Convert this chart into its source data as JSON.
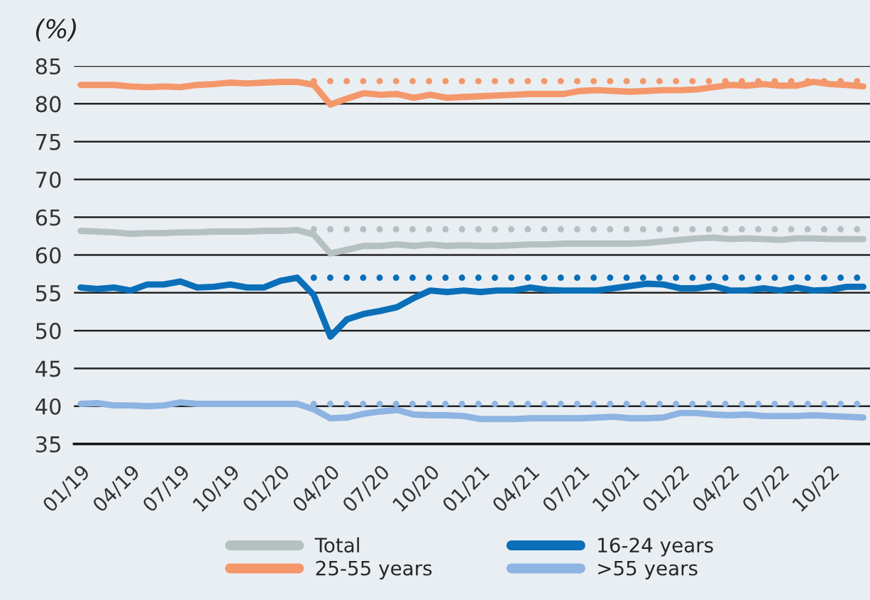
{
  "chart_data": {
    "type": "line",
    "ylabel": "(%)",
    "categories": [
      "01/19",
      null,
      null,
      "04/19",
      null,
      null,
      "07/19",
      null,
      null,
      "10/19",
      null,
      null,
      "01/20",
      null,
      null,
      "04/20",
      null,
      null,
      "07/20",
      null,
      null,
      "10/20",
      null,
      null,
      "01/21",
      null,
      null,
      "04/21",
      null,
      null,
      "07/21",
      null,
      null,
      "10/21",
      null,
      null,
      "01/22",
      null,
      null,
      "04/22",
      null,
      null,
      "07/22",
      null,
      null,
      "10/22",
      null,
      null
    ],
    "ylim": [
      35,
      85
    ],
    "yticks": [
      35,
      40,
      45,
      50,
      55,
      60,
      65,
      70,
      75,
      80,
      85
    ],
    "grid": "y",
    "legend": "bottom",
    "line_style": "solid",
    "series": [
      {
        "name": "Total",
        "color": "#b5c0c0",
        "values": [
          63.2,
          63.1,
          63.0,
          62.8,
          62.9,
          62.9,
          63.0,
          63.0,
          63.1,
          63.1,
          63.1,
          63.2,
          63.2,
          63.3,
          62.7,
          60.2,
          60.7,
          61.2,
          61.2,
          61.4,
          61.2,
          61.4,
          61.2,
          61.3,
          61.2,
          61.2,
          61.3,
          61.4,
          61.4,
          61.5,
          61.5,
          61.5,
          61.5,
          61.5,
          61.6,
          61.8,
          62.0,
          62.2,
          62.3,
          62.1,
          62.2,
          62.1,
          62.0,
          62.2,
          62.2,
          62.1,
          62.1,
          62.1
        ]
      },
      {
        "name": "25-55 years",
        "color": "#f4976a",
        "values": [
          82.5,
          82.5,
          82.5,
          82.3,
          82.2,
          82.3,
          82.2,
          82.5,
          82.6,
          82.8,
          82.7,
          82.8,
          82.9,
          82.9,
          82.5,
          79.9,
          80.7,
          81.4,
          81.2,
          81.3,
          80.8,
          81.2,
          80.8,
          80.9,
          81.0,
          81.1,
          81.2,
          81.3,
          81.3,
          81.3,
          81.7,
          81.8,
          81.7,
          81.6,
          81.7,
          81.8,
          81.8,
          81.9,
          82.2,
          82.5,
          82.4,
          82.6,
          82.4,
          82.4,
          82.9,
          82.6,
          82.5,
          82.3
        ]
      },
      {
        "name": "16-24 years",
        "color": "#0a6fb8",
        "values": [
          55.7,
          55.5,
          55.7,
          55.3,
          56.1,
          56.1,
          56.5,
          55.7,
          55.8,
          56.1,
          55.7,
          55.7,
          56.6,
          57.0,
          54.7,
          49.2,
          51.5,
          52.2,
          52.6,
          53.1,
          54.3,
          55.3,
          55.1,
          55.3,
          55.1,
          55.3,
          55.3,
          55.7,
          55.4,
          55.3,
          55.3,
          55.3,
          55.6,
          55.9,
          56.2,
          56.1,
          55.6,
          55.6,
          55.9,
          55.3,
          55.3,
          55.6,
          55.3,
          55.7,
          55.3,
          55.4,
          55.8,
          55.8
        ]
      },
      {
        "name": ">55 years",
        "color": "#8db4e2",
        "values": [
          40.3,
          40.4,
          40.1,
          40.1,
          40.0,
          40.1,
          40.5,
          40.3,
          40.3,
          40.3,
          40.3,
          40.3,
          40.3,
          40.3,
          39.6,
          38.4,
          38.5,
          39.0,
          39.3,
          39.5,
          38.9,
          38.8,
          38.8,
          38.7,
          38.3,
          38.3,
          38.3,
          38.4,
          38.4,
          38.4,
          38.4,
          38.5,
          38.6,
          38.4,
          38.4,
          38.5,
          39.1,
          39.1,
          38.9,
          38.8,
          38.9,
          38.7,
          38.7,
          38.7,
          38.8,
          38.7,
          38.6,
          38.5
        ]
      },
      {
        "color": "#b5c0c0",
        "line_style": "dotted",
        "values": [
          null,
          null,
          null,
          null,
          null,
          null,
          null,
          null,
          null,
          null,
          null,
          null,
          null,
          null,
          63.4,
          63.4,
          63.4,
          63.4,
          63.4,
          63.4,
          63.4,
          63.4,
          63.4,
          63.4,
          63.4,
          63.4,
          63.4,
          63.4,
          63.4,
          63.4,
          63.4,
          63.4,
          63.4,
          63.4,
          63.4,
          63.4,
          63.4,
          63.4,
          63.4,
          63.4,
          63.4,
          63.4,
          63.4,
          63.4,
          63.4,
          63.4,
          63.4,
          63.4
        ]
      },
      {
        "color": "#f4976a",
        "line_style": "dotted",
        "values": [
          null,
          null,
          null,
          null,
          null,
          null,
          null,
          null,
          null,
          null,
          null,
          null,
          null,
          null,
          83.0,
          83.0,
          83.0,
          83.0,
          83.0,
          83.0,
          83.0,
          83.0,
          83.0,
          83.0,
          83.0,
          83.0,
          83.0,
          83.0,
          83.0,
          83.0,
          83.0,
          83.0,
          83.0,
          83.0,
          83.0,
          83.0,
          83.0,
          83.0,
          83.0,
          83.0,
          83.0,
          83.0,
          83.0,
          83.0,
          83.0,
          83.0,
          83.0,
          83.0
        ]
      },
      {
        "color": "#0a6fb8",
        "line_style": "dotted",
        "values": [
          null,
          null,
          null,
          null,
          null,
          null,
          null,
          null,
          null,
          null,
          null,
          null,
          null,
          null,
          57.0,
          57.0,
          57.0,
          57.0,
          57.0,
          57.0,
          57.0,
          57.0,
          57.0,
          57.0,
          57.0,
          57.0,
          57.0,
          57.0,
          57.0,
          57.0,
          57.0,
          57.0,
          57.0,
          57.0,
          57.0,
          57.0,
          57.0,
          57.0,
          57.0,
          57.0,
          57.0,
          57.0,
          57.0,
          57.0,
          57.0,
          57.0,
          57.0,
          57.0
        ]
      },
      {
        "color": "#8db4e2",
        "line_style": "dotted",
        "values": [
          null,
          null,
          null,
          null,
          null,
          null,
          null,
          null,
          null,
          null,
          null,
          null,
          null,
          null,
          40.3,
          40.3,
          40.3,
          40.3,
          40.3,
          40.3,
          40.3,
          40.3,
          40.3,
          40.3,
          40.3,
          40.3,
          40.3,
          40.3,
          40.3,
          40.3,
          40.3,
          40.3,
          40.3,
          40.3,
          40.3,
          40.3,
          40.3,
          40.3,
          40.3,
          40.3,
          40.3,
          40.3,
          40.3,
          40.3,
          40.3,
          40.3,
          40.3,
          40.3
        ]
      }
    ]
  }
}
